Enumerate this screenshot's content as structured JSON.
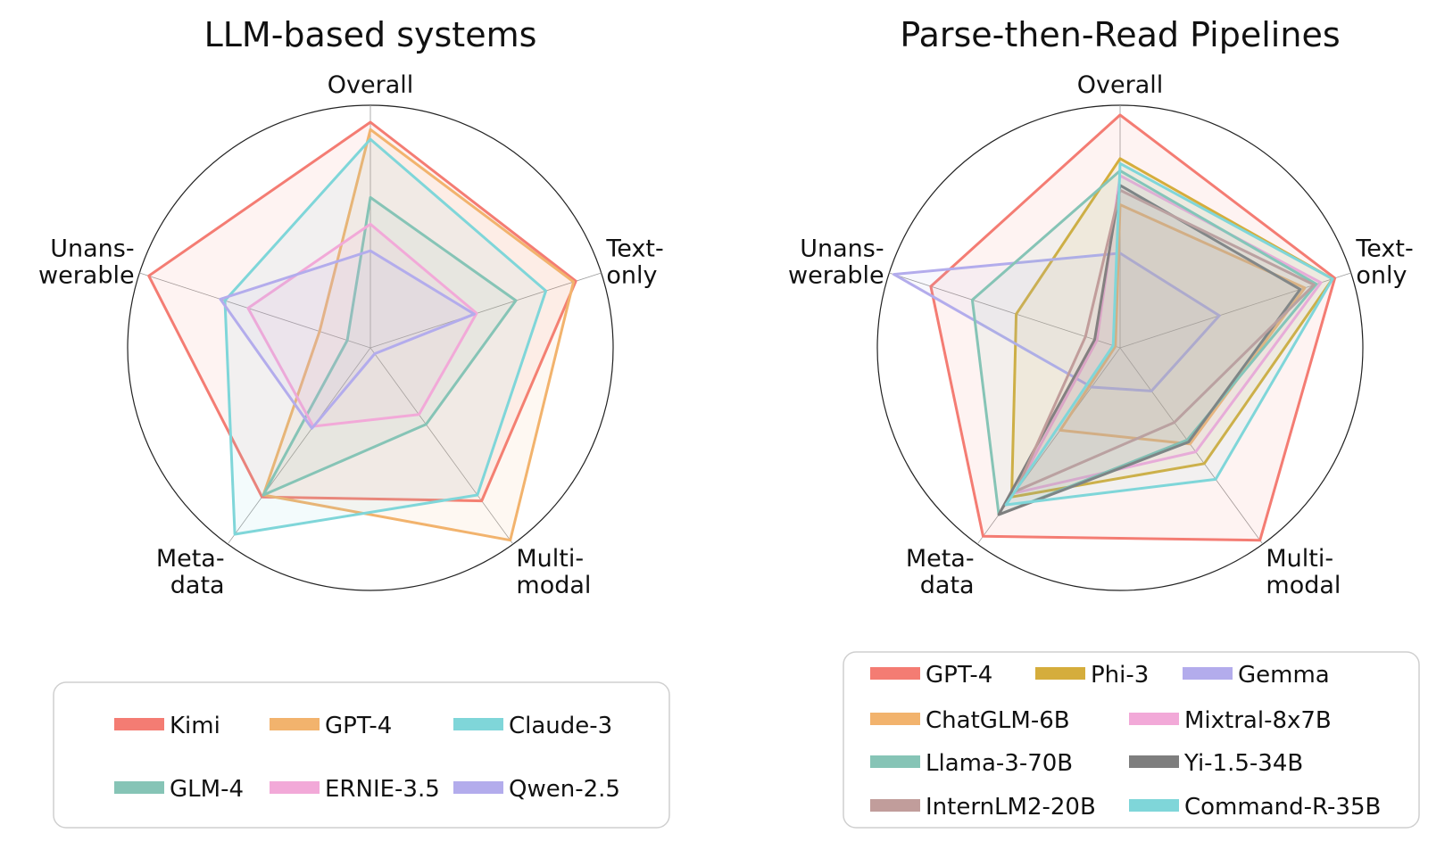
{
  "chart_data": [
    {
      "type": "radar",
      "title": "LLM-based systems",
      "axes": [
        "Overall",
        "Text-only",
        "Multi-modal",
        "Meta-data",
        "Unanswerable"
      ],
      "axis_label_lines": [
        [
          "Overall"
        ],
        [
          "Text-",
          "only"
        ],
        [
          "Multi-",
          "modal"
        ],
        [
          "Meta-",
          "data"
        ],
        [
          "Unans-",
          "werable"
        ]
      ],
      "series": [
        {
          "name": "Kimi",
          "color": "#f47c73",
          "values": [
            0.93,
            0.89,
            0.78,
            0.76,
            0.96
          ]
        },
        {
          "name": "GPT-4",
          "color": "#f2b36d",
          "values": [
            0.9,
            0.88,
            0.98,
            0.75,
            0.22
          ]
        },
        {
          "name": "Claude-3",
          "color": "#7fd6d9",
          "values": [
            0.86,
            0.76,
            0.75,
            0.95,
            0.63
          ]
        },
        {
          "name": "GLM-4",
          "color": "#86c4b6",
          "values": [
            0.62,
            0.63,
            0.39,
            0.75,
            0.1
          ]
        },
        {
          "name": "ERNIE-3.5",
          "color": "#f2a9d8",
          "values": [
            0.51,
            0.46,
            0.34,
            0.4,
            0.53
          ]
        },
        {
          "name": "Qwen-2.5",
          "color": "#b3acec",
          "values": [
            0.4,
            0.45,
            0.03,
            0.41,
            0.65
          ]
        }
      ],
      "legend": {
        "placement": "bottom",
        "columns": 3
      }
    },
    {
      "type": "radar",
      "title": "Parse-then-Read Pipelines",
      "axes": [
        "Overall",
        "Text-only",
        "Multi-modal",
        "Meta-data",
        "Unanswerable"
      ],
      "axis_label_lines": [
        [
          "Overall"
        ],
        [
          "Text-",
          "only"
        ],
        [
          "Multi-",
          "modal"
        ],
        [
          "Meta-",
          "data"
        ],
        [
          "Unans-",
          "werable"
        ]
      ],
      "series": [
        {
          "name": "GPT-4",
          "color": "#f47c73",
          "values": [
            0.96,
            0.93,
            0.98,
            0.96,
            0.82
          ]
        },
        {
          "name": "Phi-3",
          "color": "#d5ad3c",
          "values": [
            0.78,
            0.92,
            0.59,
            0.76,
            0.45
          ]
        },
        {
          "name": "Gemma",
          "color": "#b3acec",
          "values": [
            0.39,
            0.43,
            0.22,
            0.2,
            0.98
          ]
        },
        {
          "name": "ChatGLM-6B",
          "color": "#f2b36d",
          "values": [
            0.59,
            0.8,
            0.49,
            0.42,
            0.02
          ]
        },
        {
          "name": "Mixtral-8x7B",
          "color": "#f2a9d8",
          "values": [
            0.71,
            0.87,
            0.53,
            0.74,
            0.1
          ]
        },
        {
          "name": "Llama-3-70B",
          "color": "#86c4b6",
          "values": [
            0.73,
            0.85,
            0.47,
            0.85,
            0.64
          ]
        },
        {
          "name": "Yi-1.5-34B",
          "color": "#7e7e7e",
          "values": [
            0.67,
            0.78,
            0.48,
            0.85,
            0.11
          ]
        },
        {
          "name": "InternLM2-20B",
          "color": "#c19d9b",
          "values": [
            0.65,
            0.84,
            0.38,
            0.73,
            0.15
          ]
        },
        {
          "name": "Command-R-35B",
          "color": "#7fd6d9",
          "values": [
            0.76,
            0.92,
            0.67,
            0.8,
            0.03
          ]
        }
      ],
      "legend": {
        "placement": "bottom",
        "columns": 3
      }
    }
  ]
}
